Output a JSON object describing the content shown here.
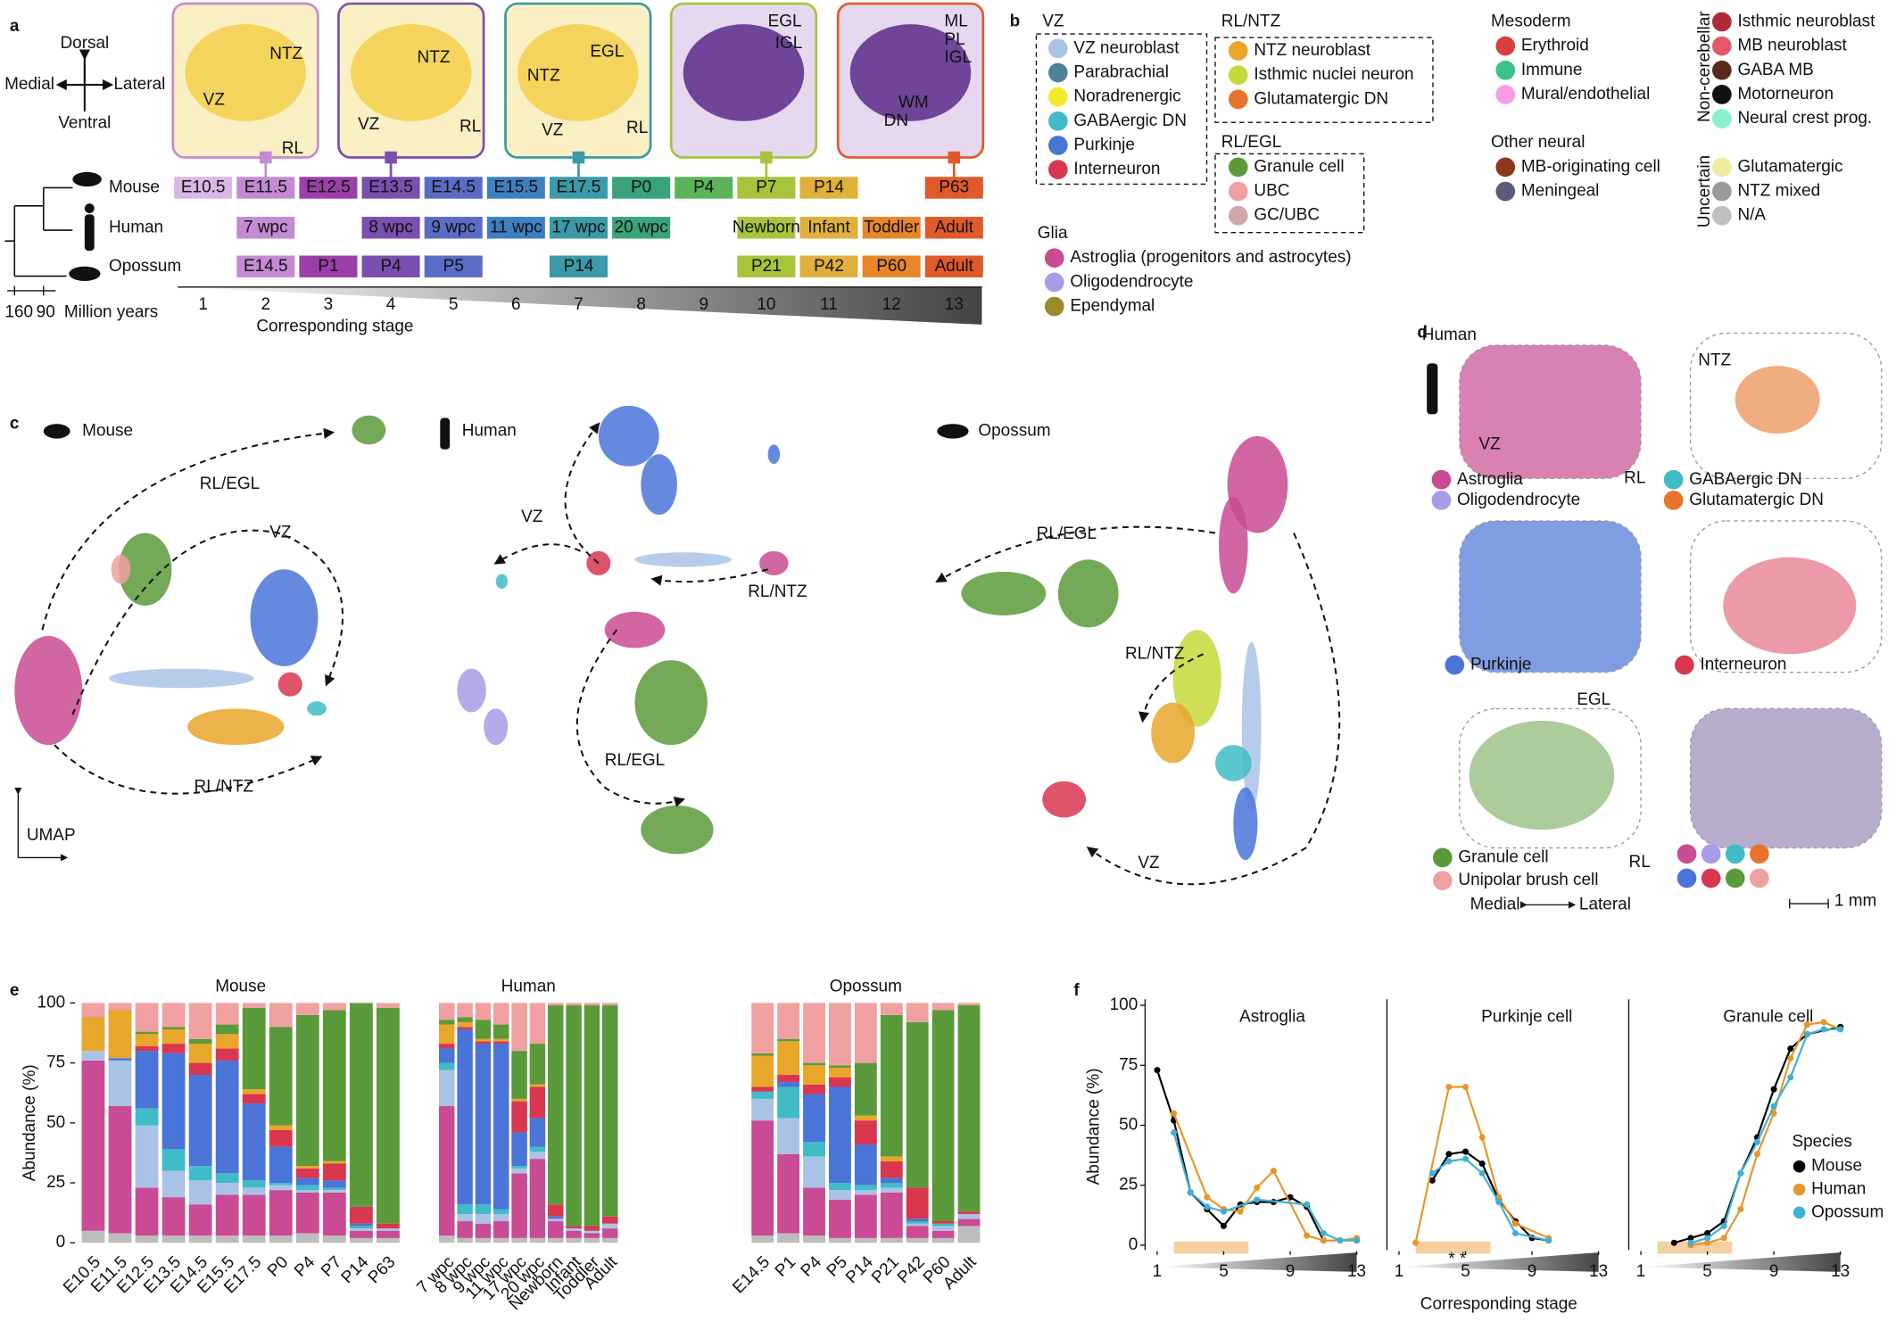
{
  "panel_labels": [
    "a",
    "b",
    "c",
    "d",
    "e",
    "f"
  ],
  "panel_a": {
    "orientation": {
      "up": "Dorsal",
      "left": "Medial",
      "right": "Lateral",
      "down": "Ventral"
    },
    "images": [
      {
        "labels": [
          "NTZ",
          "VZ",
          "RL"
        ]
      },
      {
        "labels": [
          "NTZ",
          "VZ",
          "RL"
        ]
      },
      {
        "labels": [
          "EGL",
          "NTZ",
          "VZ",
          "RL"
        ]
      },
      {
        "labels": [
          "EGL",
          "IGL"
        ]
      },
      {
        "labels": [
          "ML",
          "PL",
          "IGL",
          "WM",
          "DN"
        ]
      }
    ],
    "tree_scale": [
      "160",
      "90",
      "Million years"
    ],
    "stage_colors": [
      "#dcb6e6",
      "#c48ad4",
      "#9b3fa8",
      "#7b4fb0",
      "#5b6cc7",
      "#3e7fc2",
      "#3a9aa8",
      "#3aa37a",
      "#5cb35c",
      "#a8c43a",
      "#e0b03a",
      "#e8862a",
      "#e05a2a"
    ],
    "stages": [
      1,
      2,
      3,
      4,
      5,
      6,
      7,
      8,
      9,
      10,
      11,
      12,
      13
    ],
    "stage_axis_label": "Corresponding stage",
    "species": [
      {
        "name": "Mouse",
        "cells": [
          "E10.5",
          "E11.5",
          "E12.5",
          "E13.5",
          "E14.5",
          "E15.5",
          "E17.5",
          "P0",
          "P4",
          "P7",
          "P14",
          null,
          "P63"
        ]
      },
      {
        "name": "Human",
        "cells": [
          null,
          "7 wpc",
          null,
          "8 wpc",
          "9 wpc",
          "11 wpc",
          "17 wpc",
          "20 wpc",
          null,
          "Newborn",
          "Infant",
          "Toddler",
          "Adult"
        ]
      },
      {
        "name": "Opossum",
        "cells": [
          null,
          "E14.5",
          "P1",
          "P4",
          "P5",
          null,
          "P14",
          null,
          null,
          "P21",
          "P42",
          "P60",
          "Adult"
        ]
      }
    ]
  },
  "panel_b": {
    "groups": [
      {
        "title": "VZ",
        "items": [
          {
            "name": "VZ neuroblast",
            "color": "#a9c3e6"
          },
          {
            "name": "Parabrachial",
            "color": "#4f8299"
          },
          {
            "name": "Noradrenergic",
            "color": "#f2e92c"
          },
          {
            "name": "GABAergic DN",
            "color": "#3fbcc7"
          },
          {
            "name": "Purkinje",
            "color": "#4a74d8"
          },
          {
            "name": "Interneuron",
            "color": "#d9364f"
          }
        ]
      },
      {
        "title": "RL/NTZ",
        "items": [
          {
            "name": "NTZ neuroblast",
            "color": "#e8a62a"
          },
          {
            "name": "Isthmic nuclei neuron",
            "color": "#c5d93a"
          },
          {
            "name": "Glutamatergic DN",
            "color": "#e8742a"
          }
        ]
      },
      {
        "title": "RL/EGL",
        "items": [
          {
            "name": "Granule cell",
            "color": "#5a9a3a"
          },
          {
            "name": "UBC",
            "color": "#f0a0a0"
          },
          {
            "name": "GC/UBC",
            "color": "#cfa9a9"
          }
        ]
      },
      {
        "title": "Glia",
        "items": [
          {
            "name": "Astroglia (progenitors and astrocytes)",
            "color": "#c94b93"
          },
          {
            "name": "Oligodendrocyte",
            "color": "#a99be8"
          },
          {
            "name": "Ependymal",
            "color": "#9a8a2a"
          }
        ]
      },
      {
        "title": "Mesoderm",
        "items": [
          {
            "name": "Erythroid",
            "color": "#d94040"
          },
          {
            "name": "Immune",
            "color": "#3fbf8a"
          },
          {
            "name": "Mural/endothelial",
            "color": "#f3a0e8"
          }
        ]
      },
      {
        "title": "Other neural",
        "items": [
          {
            "name": "MB-originating cell",
            "color": "#8a3a1a"
          },
          {
            "name": "Meningeal",
            "color": "#5a5a7a"
          }
        ]
      },
      {
        "title": "Non-cerebellar",
        "items": [
          {
            "name": "Isthmic neuroblast",
            "color": "#b02a3a"
          },
          {
            "name": "MB neuroblast",
            "color": "#e05a6a"
          },
          {
            "name": "GABA MB",
            "color": "#5a2a1a"
          },
          {
            "name": "Motorneuron",
            "color": "#111111"
          },
          {
            "name": "Neural crest prog.",
            "color": "#8af0d0"
          }
        ]
      },
      {
        "title": "Uncertain",
        "items": [
          {
            "name": "Glutamatergic",
            "color": "#f0eba0"
          },
          {
            "name": "NTZ mixed",
            "color": "#9a9a9a"
          },
          {
            "name": "N/A",
            "color": "#c0c0c0"
          }
        ]
      }
    ]
  },
  "panel_c": {
    "species": [
      "Mouse",
      "Human",
      "Opossum"
    ],
    "annotations": [
      "RL/EGL",
      "VZ",
      "RL/NTZ",
      "VZ",
      "RL/NTZ",
      "RL/EGL",
      "RL/EGL",
      "RL/NTZ",
      "VZ"
    ],
    "axis": "UMAP"
  },
  "panel_d": {
    "title": "Human",
    "plot_labels": [
      "VZ",
      "RL",
      "NTZ",
      "EGL",
      "RL"
    ],
    "legend": [
      {
        "name": "Astroglia",
        "color": "#c94b93"
      },
      {
        "name": "Oligodendrocyte",
        "color": "#a99be8"
      },
      {
        "name": "GABAergic DN",
        "color": "#3fbcc7"
      },
      {
        "name": "Glutamatergic DN",
        "color": "#e8742a"
      },
      {
        "name": "Purkinje",
        "color": "#4a74d8"
      },
      {
        "name": "Interneuron",
        "color": "#d9364f"
      },
      {
        "name": "Granule cell",
        "color": "#5a9a3a"
      },
      {
        "name": "Unipolar brush cell",
        "color": "#f0a0a0"
      }
    ],
    "axis": [
      "Medial",
      "Lateral"
    ],
    "scale_bar": "1 mm"
  },
  "chart_data": [
    {
      "type": "bar",
      "stacked": true,
      "title": "Mouse",
      "ylabel": "Abundance (%)",
      "ylim": [
        0,
        100
      ],
      "yticks": [
        0,
        25,
        50,
        75,
        100
      ],
      "categories": [
        "E10.5",
        "E11.5",
        "E12.5",
        "E13.5",
        "E14.5",
        "E15.5",
        "E17.5",
        "P0",
        "P4",
        "P7",
        "P14",
        "P63"
      ],
      "series": [
        {
          "name": "N/A",
          "color": "#bdbdbd",
          "values": [
            5,
            4,
            3,
            3,
            3,
            3,
            3,
            3,
            4,
            3,
            2,
            2
          ]
        },
        {
          "name": "Astroglia",
          "color": "#c94b93",
          "values": [
            71,
            53,
            20,
            16,
            13,
            17,
            17,
            19,
            17,
            18,
            3,
            3
          ]
        },
        {
          "name": "VZ neuroblast",
          "color": "#a9c3e6",
          "values": [
            4,
            19,
            26,
            11,
            10,
            5,
            3,
            2,
            1,
            1,
            1,
            1
          ]
        },
        {
          "name": "GABAergic DN",
          "color": "#3fbcc7",
          "values": [
            0,
            0,
            7,
            9,
            6,
            4,
            3,
            1,
            2,
            1,
            1,
            0
          ]
        },
        {
          "name": "Purkinje",
          "color": "#4a74d8",
          "values": [
            0,
            1,
            24,
            40,
            38,
            47,
            32,
            15,
            3,
            3,
            1,
            0
          ]
        },
        {
          "name": "Interneuron",
          "color": "#d9364f",
          "values": [
            0,
            0,
            2,
            4,
            5,
            5,
            4,
            7,
            4,
            7,
            7,
            2
          ]
        },
        {
          "name": "NTZ neuroblast",
          "color": "#e8a62a",
          "values": [
            14,
            20,
            5,
            6,
            8,
            6,
            2,
            2,
            1,
            1,
            0,
            0
          ]
        },
        {
          "name": "Granule cell",
          "color": "#5a9a3a",
          "values": [
            0,
            0,
            1,
            1,
            2,
            4,
            34,
            41,
            63,
            63,
            85,
            90
          ]
        },
        {
          "name": "UBC",
          "color": "#f0a0a0",
          "values": [
            6,
            3,
            12,
            10,
            15,
            9,
            2,
            10,
            5,
            3,
            0,
            2
          ]
        }
      ]
    },
    {
      "type": "bar",
      "stacked": true,
      "title": "Human",
      "ylim": [
        0,
        100
      ],
      "categories": [
        "7 wpc",
        "8 wpc",
        "9 wpc",
        "11 wpc",
        "17 wpc",
        "20 wpc",
        "Newborn",
        "Infant",
        "Toddler",
        "Adult"
      ],
      "series": [
        {
          "name": "N/A",
          "color": "#bdbdbd",
          "values": [
            3,
            2,
            2,
            2,
            2,
            2,
            2,
            2,
            2,
            2
          ]
        },
        {
          "name": "Astroglia",
          "color": "#c94b93",
          "values": [
            54,
            7,
            6,
            7,
            27,
            33,
            7,
            3,
            2,
            4
          ]
        },
        {
          "name": "VZ neuroblast",
          "color": "#a9c3e6",
          "values": [
            15,
            3,
            4,
            3,
            2,
            3,
            1,
            1,
            1,
            2
          ]
        },
        {
          "name": "GABAergic DN",
          "color": "#3fbcc7",
          "values": [
            3,
            4,
            4,
            2,
            1,
            2,
            0,
            0,
            0,
            0
          ]
        },
        {
          "name": "Purkinje",
          "color": "#4a74d8",
          "values": [
            6,
            73,
            67,
            69,
            14,
            12,
            1,
            0,
            0,
            0
          ]
        },
        {
          "name": "Interneuron",
          "color": "#d9364f",
          "values": [
            2,
            1,
            1,
            1,
            13,
            13,
            5,
            1,
            2,
            3
          ]
        },
        {
          "name": "NTZ neuroblast",
          "color": "#e8a62a",
          "values": [
            8,
            2,
            1,
            1,
            1,
            1,
            0,
            0,
            0,
            0
          ]
        },
        {
          "name": "Granule cell",
          "color": "#5a9a3a",
          "values": [
            2,
            2,
            8,
            6,
            20,
            17,
            83,
            92,
            92,
            88
          ]
        },
        {
          "name": "UBC",
          "color": "#f0a0a0",
          "values": [
            7,
            6,
            7,
            9,
            20,
            17,
            1,
            1,
            1,
            1
          ]
        }
      ]
    },
    {
      "type": "bar",
      "stacked": true,
      "title": "Opossum",
      "ylim": [
        0,
        100
      ],
      "categories": [
        "E14.5",
        "P1",
        "P4",
        "P5",
        "P14",
        "P21",
        "P42",
        "P60",
        "Adult"
      ],
      "series": [
        {
          "name": "N/A",
          "color": "#bdbdbd",
          "values": [
            3,
            4,
            3,
            2,
            2,
            2,
            2,
            2,
            7
          ]
        },
        {
          "name": "Astroglia",
          "color": "#c94b93",
          "values": [
            48,
            33,
            20,
            16,
            18,
            19,
            5,
            3,
            3
          ]
        },
        {
          "name": "VZ neuroblast",
          "color": "#a9c3e6",
          "values": [
            9,
            15,
            13,
            4,
            2,
            2,
            1,
            2,
            2
          ]
        },
        {
          "name": "GABAergic DN",
          "color": "#3fbcc7",
          "values": [
            3,
            13,
            6,
            3,
            2,
            2,
            1,
            1,
            0
          ]
        },
        {
          "name": "Purkinje",
          "color": "#4a74d8",
          "values": [
            0,
            2,
            20,
            40,
            17,
            2,
            1,
            0,
            0
          ]
        },
        {
          "name": "Interneuron",
          "color": "#d9364f",
          "values": [
            2,
            3,
            4,
            4,
            10,
            7,
            13,
            1,
            1
          ]
        },
        {
          "name": "NTZ neuroblast",
          "color": "#e8a62a",
          "values": [
            13,
            14,
            8,
            4,
            2,
            2,
            0,
            0,
            0
          ]
        },
        {
          "name": "Granule cell",
          "color": "#5a9a3a",
          "values": [
            1,
            1,
            1,
            1,
            22,
            59,
            69,
            88,
            86
          ]
        },
        {
          "name": "UBC",
          "color": "#f0a0a0",
          "values": [
            21,
            15,
            25,
            26,
            25,
            5,
            8,
            3,
            1
          ]
        }
      ]
    },
    {
      "type": "line",
      "title": "Astroglia",
      "ylabel": "Abundance (%)",
      "xlim": [
        1,
        13
      ],
      "xticks": [
        1,
        5,
        9,
        13
      ],
      "ylim": [
        0,
        100
      ],
      "yticks": [
        0,
        25,
        50,
        75,
        100
      ],
      "series": [
        {
          "name": "Mouse",
          "color": "#000000",
          "x": [
            1,
            2,
            3,
            4,
            5,
            6,
            7,
            8,
            9,
            10,
            11,
            13
          ],
          "values": [
            73,
            52,
            22,
            15,
            8,
            17,
            18,
            18,
            20,
            16,
            2,
            2
          ]
        },
        {
          "name": "Human",
          "color": "#e8962a",
          "x": [
            2,
            4,
            5,
            6,
            7,
            8,
            10,
            11,
            12,
            13
          ],
          "values": [
            55,
            20,
            15,
            14,
            24,
            31,
            4,
            2,
            2,
            3
          ]
        },
        {
          "name": "Opossum",
          "color": "#3fb0d8",
          "x": [
            2,
            3,
            4,
            5,
            7,
            10,
            11,
            12,
            13
          ],
          "values": [
            47,
            22,
            16,
            14,
            19,
            17,
            5,
            2,
            2
          ]
        }
      ]
    },
    {
      "type": "line",
      "title": "Purkinje cell",
      "xlabel": "Corresponding stage",
      "annotation": "* *",
      "xlim": [
        1,
        13
      ],
      "xticks": [
        1,
        5,
        9,
        13
      ],
      "ylim": [
        0,
        100
      ],
      "series": [
        {
          "name": "Mouse",
          "color": "#000000",
          "x": [
            3,
            4,
            5,
            6,
            7,
            8,
            9,
            10
          ],
          "values": [
            27,
            38,
            39,
            34,
            19,
            10,
            3,
            2
          ]
        },
        {
          "name": "Human",
          "color": "#e8962a",
          "x": [
            2,
            4,
            5,
            6,
            7,
            8,
            10
          ],
          "values": [
            1,
            66,
            66,
            45,
            20,
            9,
            3
          ]
        },
        {
          "name": "Opossum",
          "color": "#3fb0d8",
          "x": [
            3,
            4,
            5,
            6,
            7,
            8,
            10
          ],
          "values": [
            30,
            35,
            36,
            30,
            18,
            5,
            2
          ]
        }
      ]
    },
    {
      "type": "line",
      "title": "Granule cell",
      "legend_title": "Species",
      "legend": "right",
      "xlim": [
        1,
        13
      ],
      "xticks": [
        1,
        5,
        9,
        13
      ],
      "ylim": [
        0,
        100
      ],
      "series": [
        {
          "name": "Mouse",
          "color": "#000000",
          "x": [
            3,
            4,
            5,
            6,
            7,
            8,
            9,
            10,
            11,
            13
          ],
          "values": [
            1,
            3,
            5,
            10,
            30,
            45,
            65,
            82,
            88,
            91
          ]
        },
        {
          "name": "Human",
          "color": "#e8962a",
          "x": [
            4,
            5,
            6,
            7,
            8,
            9,
            10,
            11,
            12,
            13
          ],
          "values": [
            0,
            1,
            3,
            15,
            38,
            55,
            78,
            92,
            93,
            90
          ]
        },
        {
          "name": "Opossum",
          "color": "#3fb0d8",
          "x": [
            4,
            5,
            6,
            7,
            8,
            9,
            10,
            11,
            12,
            13
          ],
          "values": [
            1,
            3,
            8,
            30,
            43,
            58,
            70,
            88,
            90,
            90
          ]
        }
      ]
    }
  ]
}
